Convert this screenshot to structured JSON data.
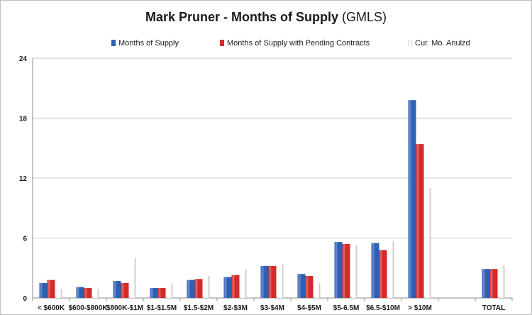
{
  "chart_data": {
    "type": "bar",
    "title_main": "Mark Pruner - Months of Supply",
    "title_suffix": "(GMLS)",
    "categories": [
      "< $600K",
      "$600-$800K",
      "$800K-$1M",
      "$1-$1.5M",
      "$1.5-$2M",
      "$2-$3M",
      "$3-$4M",
      "$4-$5M",
      "$5-6.5M",
      "$6.5-$10M",
      "> $10M",
      "",
      "TOTAL"
    ],
    "series": [
      {
        "name": "Months of Supply",
        "color": "#2e5fb5",
        "values": [
          1.5,
          1.1,
          1.7,
          1.0,
          1.8,
          2.1,
          3.2,
          2.4,
          5.6,
          5.5,
          19.8,
          null,
          2.9
        ]
      },
      {
        "name": "Months of Supply with Pending Contracts",
        "color": "#d42a2a",
        "values": [
          1.8,
          1.0,
          1.5,
          1.0,
          1.9,
          2.3,
          3.2,
          2.2,
          5.4,
          4.8,
          15.4,
          null,
          2.9
        ]
      },
      {
        "name": "Cur. Mo. Anulzd",
        "color": "#f2f2f2",
        "values": [
          0.9,
          0.9,
          4.0,
          1.4,
          2.2,
          2.9,
          3.4,
          1.5,
          5.3,
          5.7,
          11.0,
          null,
          3.2
        ]
      }
    ],
    "yticks": [
      0,
      6,
      12,
      18,
      24
    ],
    "ylim": [
      0,
      24
    ],
    "grid": true,
    "legend_position": "top"
  }
}
